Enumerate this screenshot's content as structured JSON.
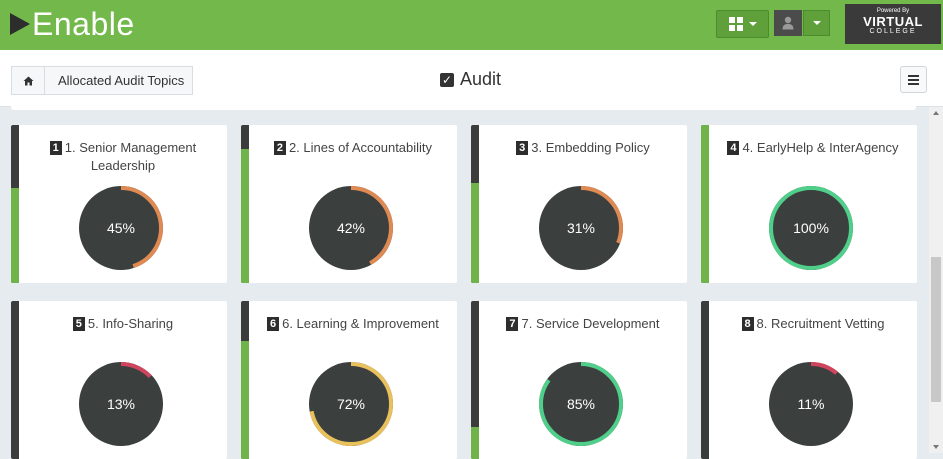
{
  "header": {
    "logo_text": "Enable",
    "brand": {
      "small": "Powered By",
      "main": "VIRTUAL",
      "sub": "COLLEGE"
    }
  },
  "breadcrumb": {
    "label": "Allocated Audit Topics"
  },
  "page": {
    "title": "Audit"
  },
  "colors": {
    "header_green": "#72b84a",
    "gauge_dark": "#3b3f3e",
    "gauge_orange": "#e08a53",
    "gauge_green": "#4fcf8a",
    "gauge_yellow": "#e9c15c",
    "gauge_red": "#d0455d",
    "side_green": "#6fb34a",
    "side_dark": "#3a3d3c"
  },
  "topics": [
    {
      "num": "1",
      "title": "1. Senior Management Leadership",
      "percent": 45,
      "label": "45%",
      "color": "#e08a53",
      "side_green_fraction": 0.6
    },
    {
      "num": "2",
      "title": "2. Lines of Accountability",
      "percent": 42,
      "label": "42%",
      "color": "#e08a53",
      "side_green_fraction": 0.85
    },
    {
      "num": "3",
      "title": "3. Embedding Policy",
      "percent": 31,
      "label": "31%",
      "color": "#e08a53",
      "side_green_fraction": 0.63
    },
    {
      "num": "4",
      "title": "4. EarlyHelp & InterAgency",
      "percent": 100,
      "label": "100%",
      "color": "#4fcf8a",
      "side_green_fraction": 1.0
    },
    {
      "num": "5",
      "title": "5. Info-Sharing",
      "percent": 13,
      "label": "13%",
      "color": "#d0455d",
      "side_green_fraction": 0.0
    },
    {
      "num": "6",
      "title": "6. Learning & Improvement",
      "percent": 72,
      "label": "72%",
      "color": "#e9c15c",
      "side_green_fraction": 0.75
    },
    {
      "num": "7",
      "title": "7. Service Development",
      "percent": 85,
      "label": "85%",
      "color": "#4fcf8a",
      "side_green_fraction": 0.2
    },
    {
      "num": "8",
      "title": "8. Recruitment Vetting",
      "percent": 11,
      "label": "11%",
      "color": "#d0455d",
      "side_green_fraction": 0.0
    }
  ]
}
